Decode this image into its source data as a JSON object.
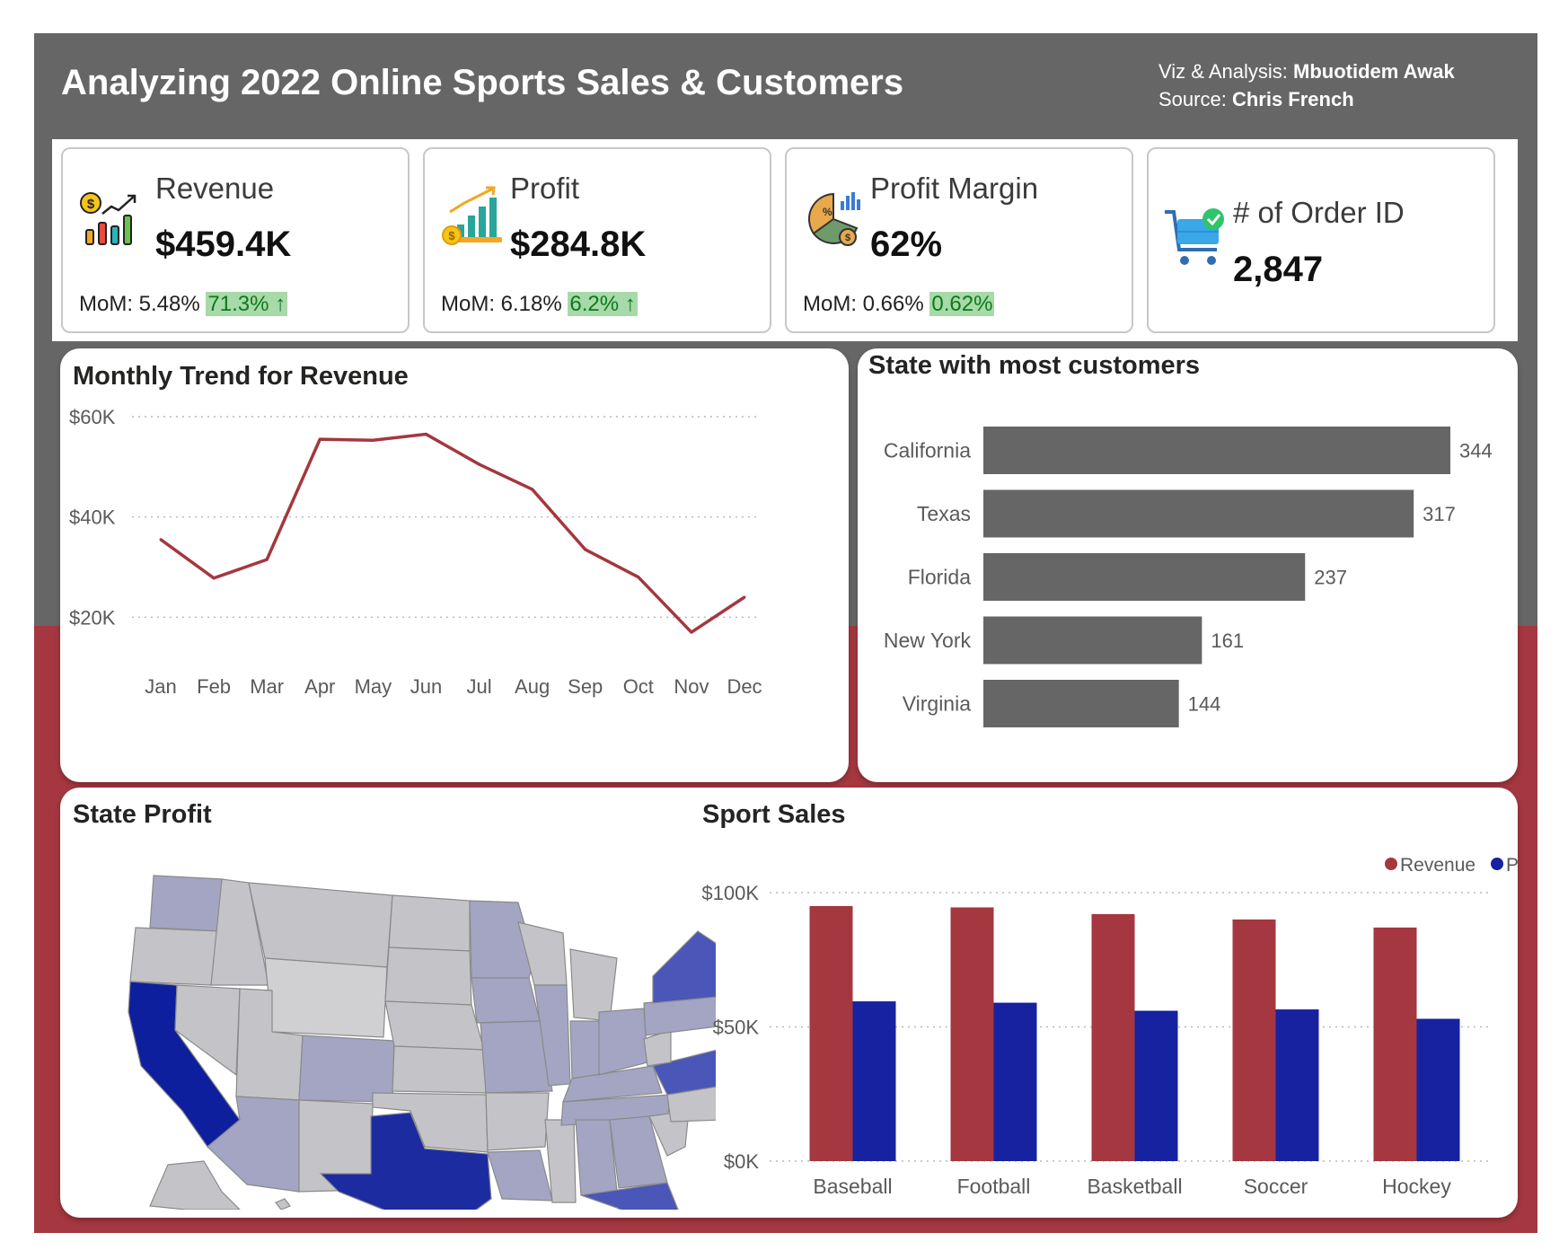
{
  "header": {
    "title": "Analyzing 2022 Online Sports Sales & Customers",
    "viz_prefix": "Viz & Analysis: ",
    "viz_author": "Mbuotidem Awak",
    "source_prefix": "Source: ",
    "source_name": "Chris French"
  },
  "kpis": [
    {
      "label": "Revenue",
      "value": "$459.4K",
      "mom_label": "MoM: 5.48%",
      "delta": "71.3%",
      "arrow": "↑",
      "icon": "revenue-chart-icon"
    },
    {
      "label": "Profit",
      "value": "$284.8K",
      "mom_label": "MoM: 6.18%",
      "delta": "6.2%",
      "arrow": "↑",
      "icon": "profit-growth-icon"
    },
    {
      "label": "Profit Margin",
      "value": "62%",
      "mom_label": "MoM: 0.66%",
      "delta": "0.62%",
      "icon": "profit-margin-pie-icon"
    },
    {
      "label": "# of Order ID",
      "value": "2,847",
      "icon": "shopping-cart-check-icon"
    }
  ],
  "colors": {
    "header_bg": "#666666",
    "accent_red": "#a4373f",
    "bar_gray": "#666666",
    "revenue": "#a4373f",
    "profit": "#1622a0",
    "delta_bg": "#a8d9a8",
    "delta_text": "#0b7a1e"
  },
  "chart_data": [
    {
      "id": "monthly-trend",
      "type": "line",
      "title": "Monthly Trend for Revenue",
      "categories": [
        "Jan",
        "Feb",
        "Mar",
        "Apr",
        "May",
        "Jun",
        "Jul",
        "Aug",
        "Sep",
        "Oct",
        "Nov",
        "Dec"
      ],
      "series": [
        {
          "values": [
            35500,
            27800,
            31500,
            55500,
            55300,
            56500,
            50500,
            45500,
            33500,
            28000,
            17000,
            24000
          ]
        }
      ],
      "yticks": [
        20000,
        40000,
        60000
      ],
      "ytick_labels": [
        "$20K",
        "$40K",
        "$60K"
      ],
      "ylim": [
        12000,
        60000
      ],
      "grid": true
    },
    {
      "id": "state-customers",
      "type": "bar",
      "orientation": "horizontal",
      "title": "State with most customers",
      "categories": [
        "California",
        "Texas",
        "Florida",
        "New York",
        "Virginia"
      ],
      "values": [
        344,
        317,
        237,
        161,
        144
      ],
      "xlim": [
        0,
        344
      ],
      "data_labels": true
    },
    {
      "id": "sport-sales",
      "type": "bar",
      "title": "Sport Sales",
      "categories": [
        "Baseball",
        "Football",
        "Basketball",
        "Soccer",
        "Hockey"
      ],
      "series": [
        {
          "name": "Revenue",
          "values": [
            95000,
            94500,
            92000,
            90000,
            87000
          ]
        },
        {
          "name": "Profit",
          "values": [
            59500,
            59000,
            56000,
            56500,
            53000
          ]
        }
      ],
      "yticks": [
        0,
        50000,
        100000
      ],
      "ytick_labels": [
        "$0K",
        "$50K",
        "$100K"
      ],
      "ylim": [
        0,
        100000
      ],
      "legend": "top-right",
      "grid": true
    }
  ],
  "state_profit": {
    "title": "State Profit",
    "type": "map",
    "highlighted_states": [
      "California",
      "Texas",
      "Florida",
      "New York",
      "Virginia"
    ]
  }
}
